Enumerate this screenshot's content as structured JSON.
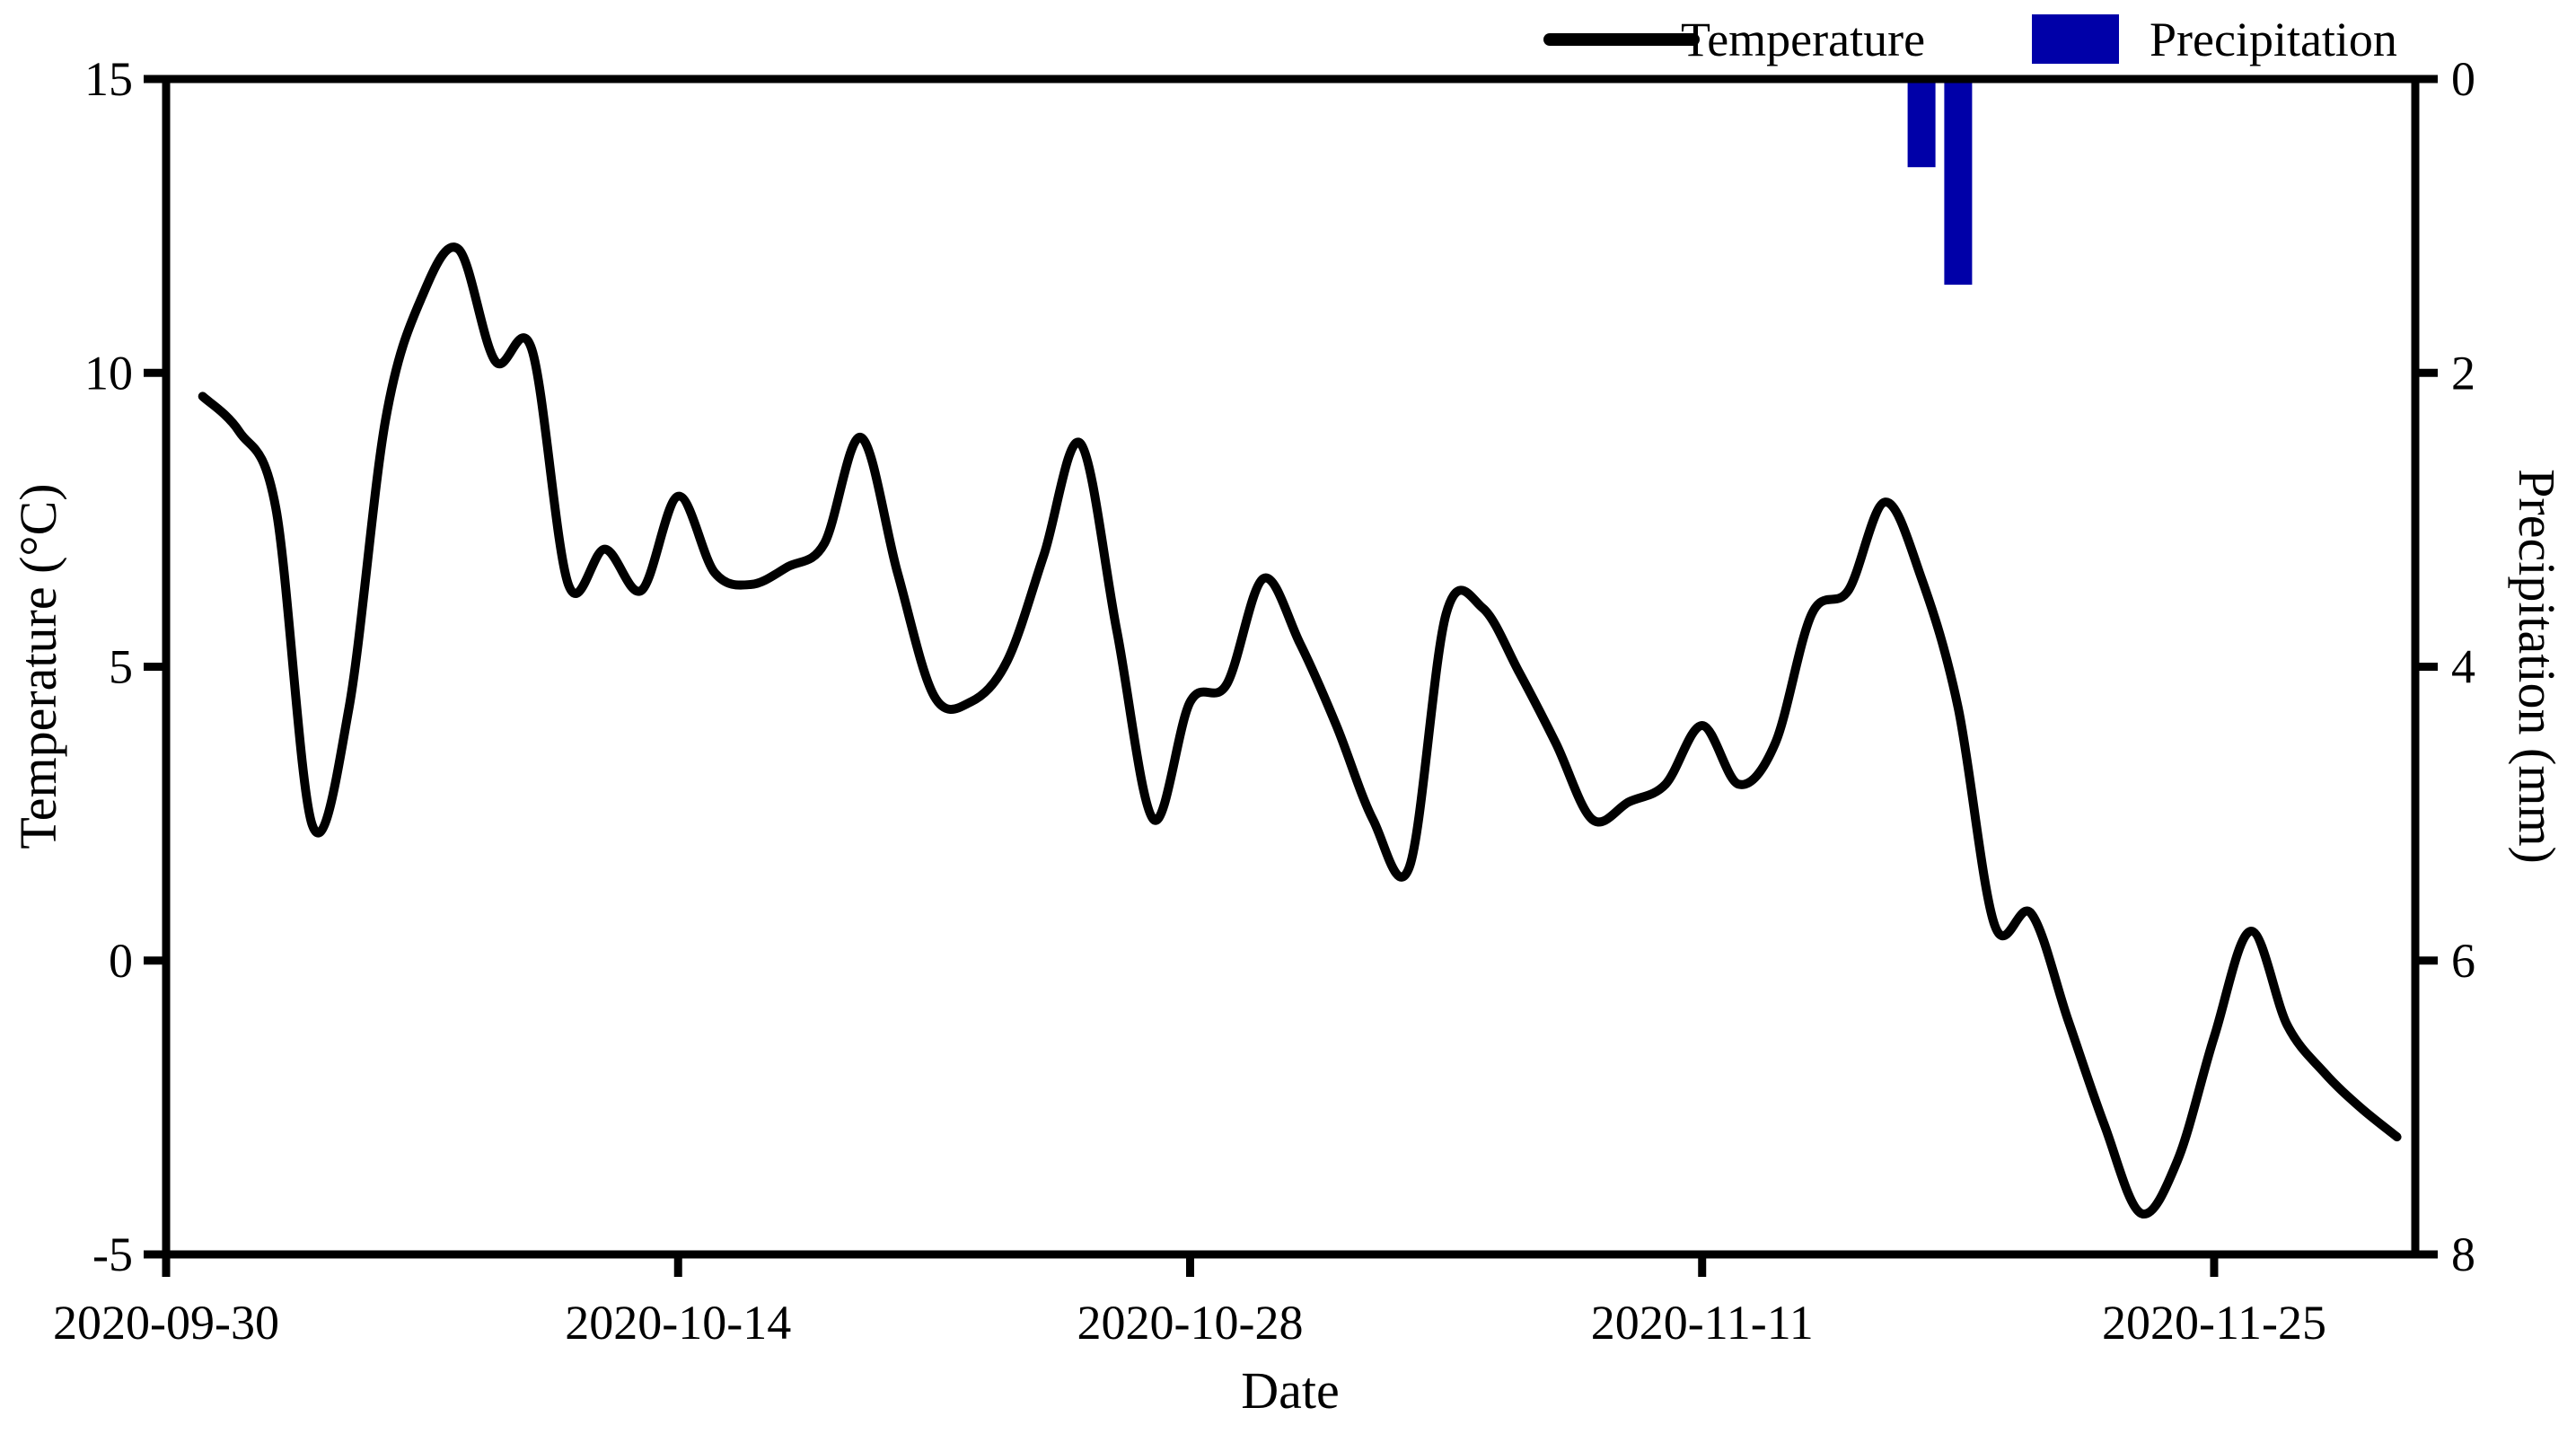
{
  "figure": {
    "background": "#ffffff",
    "axis_color": "#000000",
    "temperature_line_color": "#000000",
    "precipitation_bar_color": "#0000A8"
  },
  "legend": {
    "items": [
      {
        "label": "Temperature",
        "swatch": "line"
      },
      {
        "label": "Precipitation",
        "swatch": "patch"
      }
    ]
  },
  "axes": {
    "x": {
      "title": "Date",
      "tick_labels": [
        "2020-09-30",
        "2020-10-14",
        "2020-10-28",
        "2020-11-11",
        "2020-11-25"
      ],
      "tick_interval_days": 14
    },
    "y_left": {
      "title": "Temperature (°C)",
      "tick_labels": [
        "15",
        "10",
        "5",
        "0",
        "-5"
      ],
      "range": [
        -5,
        15
      ]
    },
    "y_right": {
      "title": "Precipitation (mm)",
      "tick_labels": [
        "0",
        "2",
        "4",
        "6",
        "8"
      ],
      "range": [
        0,
        8
      ],
      "inverted": true
    }
  },
  "chart_data": {
    "type": "line+bar",
    "title": "",
    "xlabel": "Date",
    "ylabel_left": "Temperature (°C)",
    "ylabel_right": "Precipitation (mm)",
    "x_start": "2020-09-30",
    "x_dates": [
      "2020-10-01",
      "2020-10-02",
      "2020-10-03",
      "2020-10-04",
      "2020-10-05",
      "2020-10-06",
      "2020-10-07",
      "2020-10-08",
      "2020-10-09",
      "2020-10-10",
      "2020-10-11",
      "2020-10-12",
      "2020-10-13",
      "2020-10-14",
      "2020-10-15",
      "2020-10-16",
      "2020-10-17",
      "2020-10-18",
      "2020-10-19",
      "2020-10-20",
      "2020-10-21",
      "2020-10-22",
      "2020-10-23",
      "2020-10-24",
      "2020-10-25",
      "2020-10-26",
      "2020-10-27",
      "2020-10-28",
      "2020-10-29",
      "2020-10-30",
      "2020-10-31",
      "2020-11-01",
      "2020-11-02",
      "2020-11-03",
      "2020-11-04",
      "2020-11-05",
      "2020-11-06",
      "2020-11-07",
      "2020-11-08",
      "2020-11-09",
      "2020-11-10",
      "2020-11-11",
      "2020-11-12",
      "2020-11-13",
      "2020-11-14",
      "2020-11-15",
      "2020-11-16",
      "2020-11-17",
      "2020-11-18",
      "2020-11-19",
      "2020-11-20",
      "2020-11-21",
      "2020-11-22",
      "2020-11-23",
      "2020-11-24",
      "2020-11-25",
      "2020-11-26",
      "2020-11-27",
      "2020-11-28",
      "2020-11-29",
      "2020-11-30"
    ],
    "series": [
      {
        "name": "Temperature",
        "unit": "°C",
        "values": [
          9.6,
          9.0,
          7.7,
          2.3,
          4.3,
          9.2,
          11.3,
          12.1,
          10.2,
          10.4,
          6.4,
          7.0,
          6.3,
          7.9,
          6.6,
          6.4,
          6.7,
          7.1,
          8.9,
          6.6,
          4.5,
          4.4,
          5.1,
          6.9,
          8.8,
          5.6,
          2.4,
          4.4,
          4.7,
          6.5,
          5.4,
          4.0,
          2.4,
          1.6,
          5.9,
          6.0,
          4.9,
          3.7,
          2.4,
          2.7,
          3.0,
          4.0,
          3.0,
          3.7,
          5.9,
          6.3,
          7.8,
          6.5,
          4.3,
          0.6,
          0.8,
          -1.0,
          -2.8,
          -4.3,
          -3.4,
          -1.3,
          0.5,
          -1.1,
          -1.9,
          -2.5,
          -3.0
        ]
      },
      {
        "name": "Precipitation",
        "unit": "mm",
        "records": [
          {
            "date": "2020-11-17",
            "mm": 0.6
          },
          {
            "date": "2020-11-18",
            "mm": 1.4
          }
        ]
      }
    ],
    "ylim_left": [
      -5,
      15
    ],
    "ylim_right_inverted": [
      0,
      8
    ],
    "grid": false,
    "legend_position": "top-right-above-axes"
  }
}
